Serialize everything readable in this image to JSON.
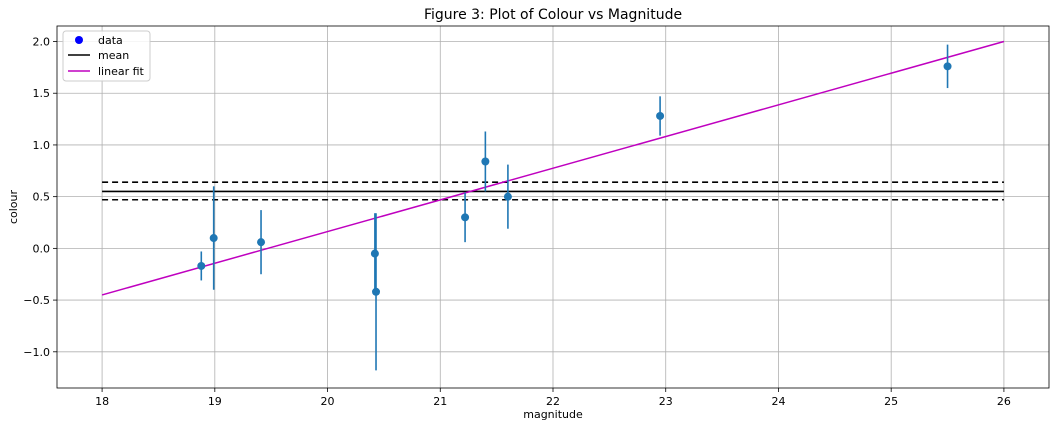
{
  "chart_data": {
    "type": "scatter",
    "title": "Figure 3: Plot of Colour vs Magnitude",
    "xlabel": "magnitude",
    "ylabel": "colour",
    "xlim": [
      17.6,
      26.4
    ],
    "ylim": [
      -1.35,
      2.15
    ],
    "xticks": [
      18,
      19,
      20,
      21,
      22,
      23,
      24,
      25,
      26
    ],
    "yticks": [
      -1.0,
      -0.5,
      0.0,
      0.5,
      1.0,
      1.5,
      2.0
    ],
    "ytick_labels": [
      "−1.0",
      "−0.5",
      "0.0",
      "0.5",
      "1.0",
      "1.5",
      "2.0"
    ],
    "grid": true,
    "legend_position": "top-left",
    "legend": [
      {
        "label": "data",
        "kind": "marker",
        "color": "#0000ff"
      },
      {
        "label": "mean",
        "kind": "line",
        "color": "#000000"
      },
      {
        "label": "linear fit",
        "kind": "line",
        "color": "#bf00bf"
      }
    ],
    "series": [
      {
        "name": "data",
        "color": "#1f77b4",
        "points": [
          {
            "x": 18.88,
            "y": -0.17,
            "yerr": 0.14
          },
          {
            "x": 18.99,
            "y": 0.1,
            "yerr": 0.5
          },
          {
            "x": 19.41,
            "y": 0.06,
            "yerr": 0.31
          },
          {
            "x": 20.42,
            "y": -0.05,
            "yerr": 0.39
          },
          {
            "x": 20.43,
            "y": -0.42,
            "yerr": 0.76
          },
          {
            "x": 21.22,
            "y": 0.3,
            "yerr": 0.24
          },
          {
            "x": 21.4,
            "y": 0.84,
            "yerr": 0.29
          },
          {
            "x": 21.6,
            "y": 0.5,
            "yerr": 0.31
          },
          {
            "x": 22.95,
            "y": 1.28,
            "yerr": 0.19
          },
          {
            "x": 25.5,
            "y": 1.76,
            "yerr": 0.21
          }
        ]
      },
      {
        "name": "mean",
        "color": "#000000",
        "line": {
          "x": [
            18,
            26
          ],
          "y": 0.55
        },
        "band": {
          "lower": 0.47,
          "upper": 0.64,
          "style": "dashed"
        }
      },
      {
        "name": "linear fit",
        "color": "#bf00bf",
        "line": {
          "x": [
            18,
            26
          ],
          "y": [
            -0.45,
            2.0
          ]
        }
      }
    ]
  }
}
